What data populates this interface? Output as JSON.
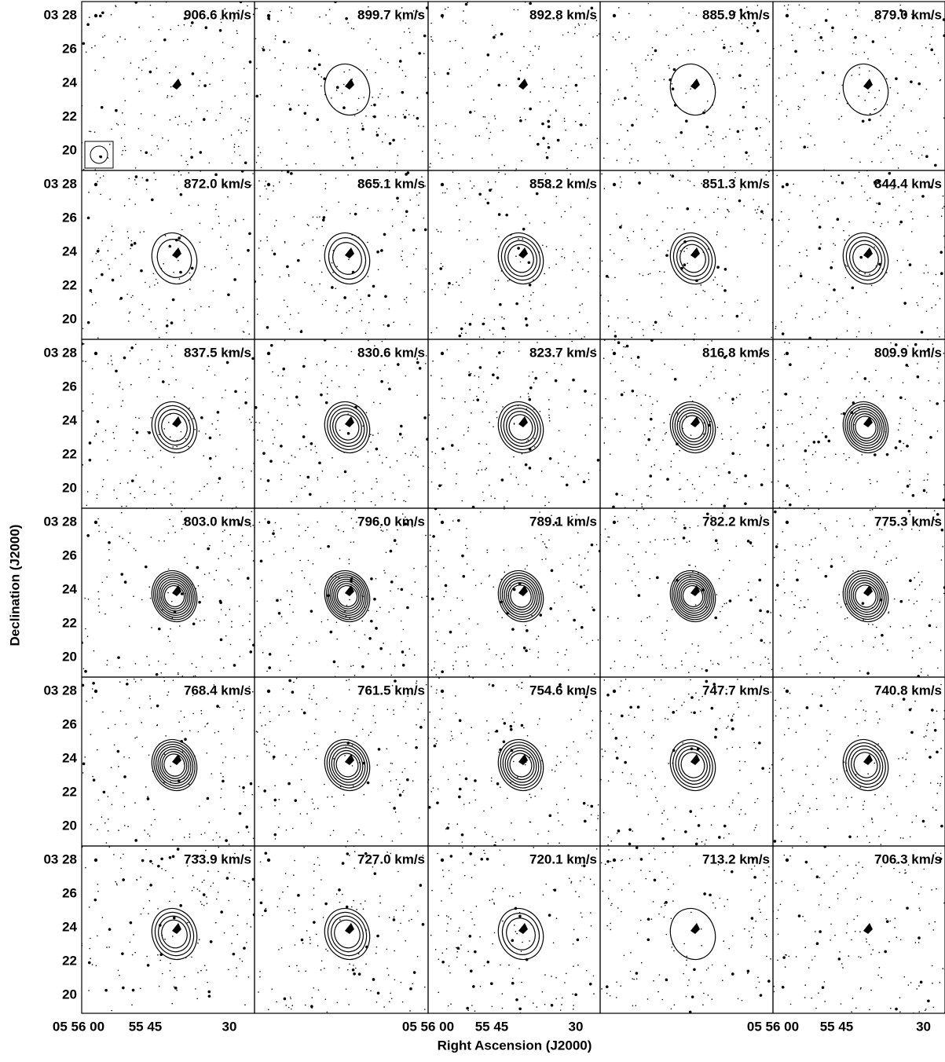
{
  "panels": [
    {
      "velocity": "906.6 km/s"
    },
    {
      "velocity": "899.7 km/s"
    },
    {
      "velocity": "892.8 km/s"
    },
    {
      "velocity": "885.9 km/s"
    },
    {
      "velocity": "879.0 km/s"
    },
    {
      "velocity": "872.0 km/s"
    },
    {
      "velocity": "865.1 km/s"
    },
    {
      "velocity": "858.2 km/s"
    },
    {
      "velocity": "851.3 km/s"
    },
    {
      "velocity": "844.4 km/s"
    },
    {
      "velocity": "837.5 km/s"
    },
    {
      "velocity": "830.6 km/s"
    },
    {
      "velocity": "823.7 km/s"
    },
    {
      "velocity": "816.8 km/s"
    },
    {
      "velocity": "809.9 km/s"
    },
    {
      "velocity": "803.0 km/s"
    },
    {
      "velocity": "796.0 km/s"
    },
    {
      "velocity": "789.1 km/s"
    },
    {
      "velocity": "782.2 km/s"
    },
    {
      "velocity": "775.3 km/s"
    },
    {
      "velocity": "768.4 km/s"
    },
    {
      "velocity": "761.5 km/s"
    },
    {
      "velocity": "754.6 km/s"
    },
    {
      "velocity": "747.7 km/s"
    },
    {
      "velocity": "740.8 km/s"
    },
    {
      "velocity": "733.9 km/s"
    },
    {
      "velocity": "727.0 km/s"
    },
    {
      "velocity": "720.1 km/s"
    },
    {
      "velocity": "713.2 km/s"
    },
    {
      "velocity": "706.3 km/s"
    }
  ],
  "y_axis": {
    "title": "Declination (J2000)",
    "ticks": [
      "03 28",
      "26",
      "24",
      "22",
      "20"
    ]
  },
  "x_axis": {
    "title": "Right Ascension (J2000)",
    "ticks": [
      "05 56 00",
      "55 45",
      "30"
    ]
  }
}
